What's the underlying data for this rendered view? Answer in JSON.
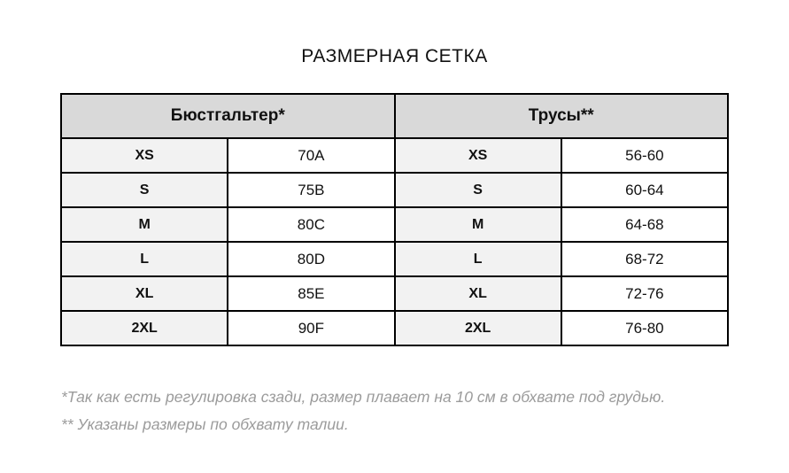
{
  "title": "РАЗМЕРНАЯ СЕТКА",
  "table": {
    "headers": {
      "bra": "Бюстгальтер*",
      "panties": "Трусы**"
    },
    "rows": [
      {
        "bra_size": "XS",
        "bra_value": "70A",
        "panty_size": "XS",
        "panty_value": "56-60"
      },
      {
        "bra_size": "S",
        "bra_value": "75B",
        "panty_size": "S",
        "panty_value": "60-64"
      },
      {
        "bra_size": "M",
        "bra_value": "80C",
        "panty_size": "M",
        "panty_value": "64-68"
      },
      {
        "bra_size": "L",
        "bra_value": "80D",
        "panty_size": "L",
        "panty_value": "68-72"
      },
      {
        "bra_size": "XL",
        "bra_value": "85E",
        "panty_size": "XL",
        "panty_value": "72-76"
      },
      {
        "bra_size": "2XL",
        "bra_value": "90F",
        "panty_size": "2XL",
        "panty_value": "76-80"
      }
    ]
  },
  "footnotes": {
    "bra_note": "*Так как есть регулировка сзади, размер плавает на 10 см в обхвате под грудью.",
    "panty_note": "** Указаны размеры по обхвату талии."
  },
  "colors": {
    "header_bg": "#d9d9d9",
    "size_cell_bg": "#f2f2f2",
    "value_cell_bg": "#ffffff",
    "border": "#000000",
    "footnote": "#9b9b9b"
  }
}
